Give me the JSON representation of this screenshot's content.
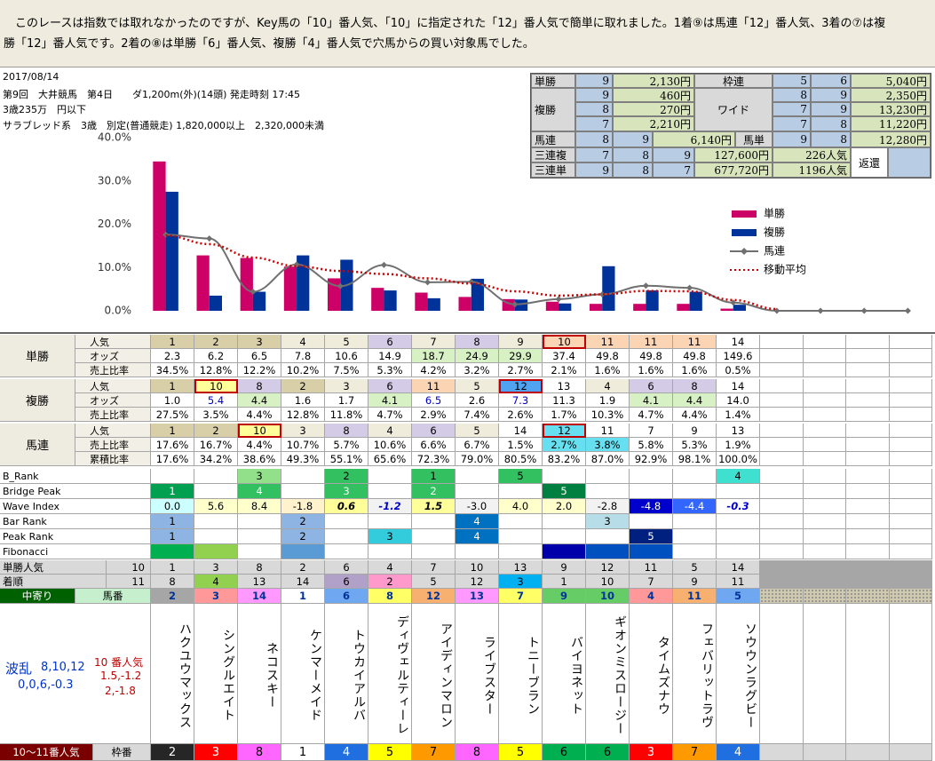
{
  "intro": [
    "　このレースは指数では取れなかったのですが、Key馬の「10」番人気、「10」に指定された「12」番人気で簡単に取れました。1着⑨は馬連「12」番人気、3着の⑦は複",
    "勝「12」番人気です。2着の⑧は単勝「6」番人気、複勝「4」番人気で穴馬からの買い対象馬でした。"
  ],
  "race": {
    "date": "2017/08/14",
    "line1": "第9回　大井競馬　第4日　　ダ1,200m(外)(14頭) 発走時刻 17:45",
    "line2": "3歳235万　円以下",
    "line3": "サラブレッド系　3歳　別定(普通競走) 1,820,000以上　2,320,000未満"
  },
  "payout": {
    "rows": [
      [
        "単勝",
        "9",
        "2,130円",
        "枠連",
        "5",
        "6",
        "5,040円"
      ],
      [
        "複勝",
        "9",
        "460円",
        "ワイド",
        "8",
        "9",
        "2,350円"
      ],
      [
        "8",
        "270円",
        "7",
        "9",
        "13,230円"
      ],
      [
        "7",
        "2,210円",
        "7",
        "8",
        "11,220円"
      ],
      [
        "馬連",
        "8",
        "9",
        "6,140円",
        "馬単",
        "9",
        "8",
        "12,280円"
      ],
      [
        "三連複",
        "7",
        "8",
        "9",
        "127,600円",
        "226人気",
        "返還"
      ],
      [
        "三連単",
        "9",
        "8",
        "7",
        "677,720円",
        "1196人気"
      ]
    ]
  },
  "chart_data": {
    "type": "bar",
    "categories": [
      null,
      null,
      null,
      null,
      null,
      null,
      null,
      null,
      null,
      null,
      null,
      null,
      null,
      null,
      null,
      null,
      null,
      null
    ],
    "ylim": [
      0,
      40
    ],
    "yticks": [
      {
        "value": 0,
        "label": "0.0%"
      },
      {
        "value": 10,
        "label": "10.0%"
      },
      {
        "value": 20,
        "label": "20.0%"
      },
      {
        "value": 30,
        "label": "30.0%"
      },
      {
        "value": 40,
        "label": "40.0%"
      }
    ],
    "series": [
      {
        "name": "単勝",
        "type": "bar",
        "color": "#cc0066",
        "values": [
          34.5,
          12.8,
          12.2,
          10.2,
          7.5,
          5.3,
          4.2,
          3.2,
          2.7,
          2.1,
          1.6,
          1.6,
          1.6,
          0.5,
          null,
          null,
          null,
          null
        ]
      },
      {
        "name": "複勝",
        "type": "bar",
        "color": "#003399",
        "values": [
          27.5,
          3.5,
          4.4,
          12.8,
          11.8,
          4.7,
          2.9,
          7.4,
          2.6,
          1.7,
          10.3,
          4.7,
          4.4,
          1.4,
          null,
          null,
          null,
          null
        ]
      },
      {
        "name": "馬連",
        "type": "line",
        "color": "#707070",
        "marker": "diamond",
        "values": [
          17.6,
          16.7,
          4.4,
          10.7,
          5.7,
          10.6,
          6.6,
          6.7,
          1.5,
          2.7,
          3.8,
          5.8,
          5.3,
          1.9,
          0,
          0,
          0,
          0
        ]
      },
      {
        "name": "移動平均",
        "type": "line",
        "color": "#cc0000",
        "dash": "dotted",
        "values": [
          17.4,
          15.4,
          12.3,
          10.3,
          9.2,
          8.5,
          7.5,
          6.3,
          4.5,
          3.5,
          3.8,
          4.6,
          4.5,
          2.5,
          0.4,
          null,
          null,
          null
        ]
      }
    ],
    "legend": "right"
  },
  "grid": {
    "groups": [
      {
        "label": "単勝",
        "rows": [
          {
            "label": "人気",
            "values": [
              "1",
              "2",
              "3",
              "4",
              "5",
              "6",
              "7",
              "8",
              "9",
              "10",
              "11",
              "11",
              "11",
              "14"
            ]
          },
          {
            "label": "オッズ",
            "values": [
              "2.3",
              "6.2",
              "6.5",
              "7.8",
              "10.6",
              "14.9",
              "18.7",
              "24.9",
              "29.9",
              "37.4",
              "49.8",
              "49.8",
              "49.8",
              "149.6"
            ]
          },
          {
            "label": "売上比率",
            "values": [
              "34.5%",
              "12.8%",
              "12.2%",
              "10.2%",
              "7.5%",
              "5.3%",
              "4.2%",
              "3.2%",
              "2.7%",
              "2.1%",
              "1.6%",
              "1.6%",
              "1.6%",
              "0.5%"
            ]
          }
        ]
      },
      {
        "label": "複勝",
        "rows": [
          {
            "label": "人気",
            "values": [
              "1",
              "10",
              "8",
              "2",
              "3",
              "6",
              "11",
              "5",
              "12",
              "13",
              "4",
              "6",
              "8",
              "14"
            ]
          },
          {
            "label": "オッズ",
            "values": [
              "1.0",
              "5.4",
              "4.4",
              "1.6",
              "1.7",
              "4.1",
              "6.5",
              "2.6",
              "7.3",
              "11.3",
              "1.9",
              "4.1",
              "4.4",
              "14.0"
            ]
          },
          {
            "label": "売上比率",
            "values": [
              "27.5%",
              "3.5%",
              "4.4%",
              "12.8%",
              "11.8%",
              "4.7%",
              "2.9%",
              "7.4%",
              "2.6%",
              "1.7%",
              "10.3%",
              "4.7%",
              "4.4%",
              "1.4%"
            ]
          }
        ]
      },
      {
        "label": "馬連",
        "rows": [
          {
            "label": "人気",
            "values": [
              "1",
              "2",
              "10",
              "3",
              "8",
              "4",
              "6",
              "5",
              "14",
              "12",
              "11",
              "7",
              "9",
              "13"
            ]
          },
          {
            "label": "売上比率",
            "values": [
              "17.6%",
              "16.7%",
              "4.4%",
              "10.7%",
              "5.7%",
              "10.6%",
              "6.6%",
              "6.7%",
              "1.5%",
              "2.7%",
              "3.8%",
              "5.8%",
              "5.3%",
              "1.9%"
            ]
          },
          {
            "label": "累積比率",
            "values": [
              "17.6%",
              "34.2%",
              "38.6%",
              "49.3%",
              "55.1%",
              "65.6%",
              "72.3%",
              "79.0%",
              "80.5%",
              "83.2%",
              "87.0%",
              "92.9%",
              "98.1%",
              "100.0%"
            ]
          }
        ]
      }
    ],
    "indices": [
      {
        "label": "B_Rank",
        "values": [
          null,
          null,
          "3",
          null,
          "2",
          null,
          "1",
          null,
          "5",
          null,
          null,
          null,
          null,
          "4"
        ]
      },
      {
        "label": "Bridge Peak",
        "values": [
          "1",
          null,
          "4",
          null,
          "3",
          null,
          "2",
          null,
          null,
          "5",
          null,
          null,
          null,
          null
        ]
      },
      {
        "label": "Wave Index",
        "values": [
          "0.0",
          "5.6",
          "8.4",
          "-1.8",
          "0.6",
          "-1.2",
          "1.5",
          "-3.0",
          "4.0",
          "2.0",
          "-2.8",
          "-4.8",
          "-4.4",
          "-0.3"
        ]
      },
      {
        "label": "Bar Rank",
        "values": [
          "1",
          null,
          null,
          "2",
          null,
          null,
          null,
          "4",
          null,
          null,
          "3",
          null,
          null,
          null
        ]
      },
      {
        "label": "Peak Rank",
        "values": [
          "1",
          null,
          null,
          "2",
          null,
          "3",
          null,
          "4",
          null,
          null,
          null,
          "5",
          null,
          null
        ]
      },
      {
        "label": "Fibonacci"
      }
    ],
    "tansho_ninki": {
      "label": "単勝人気",
      "count": "10",
      "values": [
        "1",
        "3",
        "8",
        "2",
        "6",
        "4",
        "7",
        "10",
        "13",
        "9",
        "12",
        "11",
        "5",
        "14"
      ]
    },
    "chakujun": {
      "label": "着順",
      "count": "11",
      "values": [
        "8",
        "4",
        "13",
        "14",
        "6",
        "2",
        "5",
        "12",
        "3",
        "1",
        "10",
        "7",
        "9",
        "11"
      ]
    },
    "umaban": {
      "group": "中寄り",
      "label": "馬番",
      "values": [
        "2",
        "3",
        "14",
        "1",
        "6",
        "8",
        "12",
        "13",
        "7",
        "9",
        "10",
        "4",
        "11",
        "5"
      ]
    },
    "names": [
      "ハクユウマックス",
      "シングルエイト",
      "ネコスキー",
      "ケンマーメイド",
      "トウカイアルバ",
      "ディヴェルティーレ",
      "アイディンマロン",
      "ライブスター",
      "トニーブラン",
      "バイヨネット",
      "ギオンミスロージー",
      "タイムズナウ",
      "フェバリットラヴ",
      "ソウウンラグビー"
    ],
    "notes": {
      "haran": "波乱",
      "haran_vals": "8,10,12",
      "haran_vals2": "0,0,6,-0.3",
      "ninki": "10 番人気",
      "ninki_vals1": "1.5,-1.2",
      "ninki_vals2": "2,-1.8"
    },
    "wakuban": {
      "group": "10～11番人気",
      "label": "枠番",
      "values": [
        "2",
        "3",
        "8",
        "1",
        "4",
        "5",
        "7",
        "8",
        "5",
        "6",
        "6",
        "3",
        "7",
        "4"
      ]
    }
  }
}
